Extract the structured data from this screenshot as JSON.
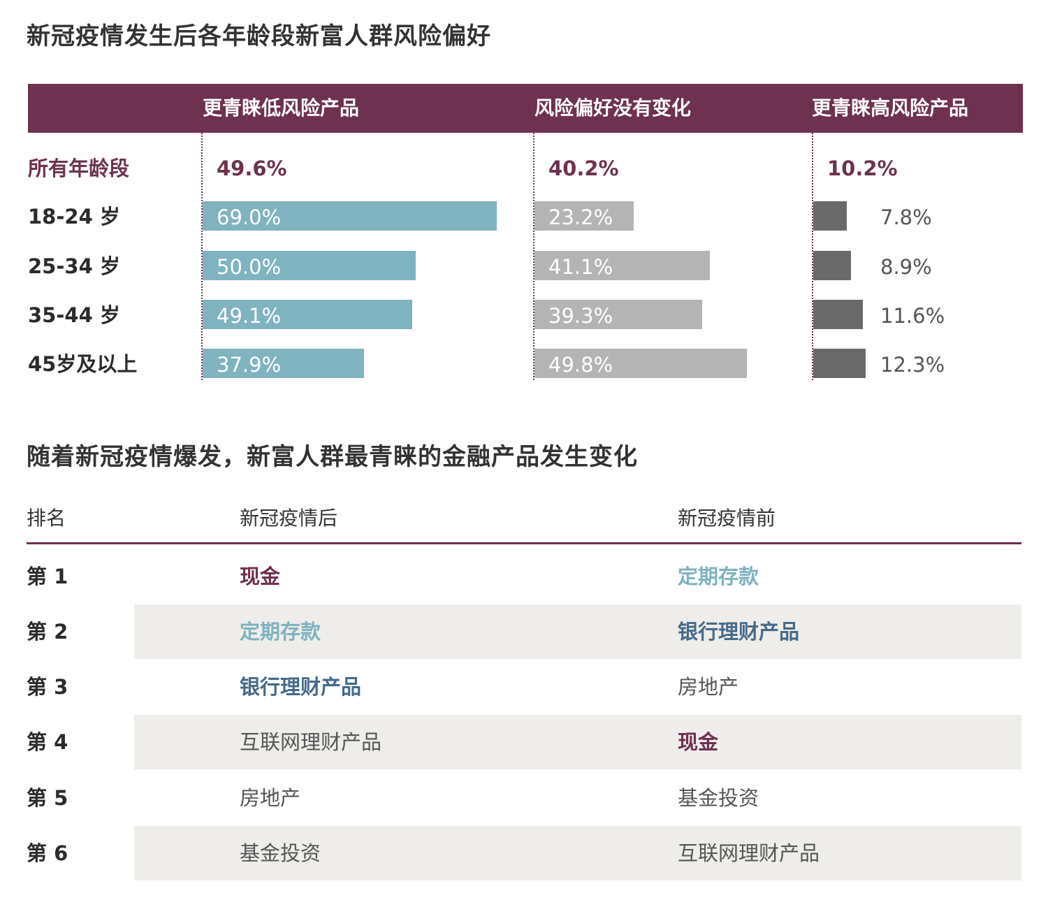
{
  "titles": {
    "chart": "新冠疫情发生后各年龄段新富人群风险偏好",
    "table": "随着新冠疫情爆发，新富人群最青睐的金融产品发生变化"
  },
  "colors": {
    "header_bg": "#6e3150",
    "low_risk": "#7fb3bf",
    "no_change": "#b4b4b4",
    "high_risk": "#6a6a6a",
    "accent": "#6e3150",
    "bank_blue": "#466a8a",
    "row_shade": "#efedea"
  },
  "chart_data": {
    "type": "bar",
    "title": "新冠疫情发生后各年龄段新富人群风险偏好",
    "orientation": "horizontal",
    "unit": "%",
    "categories": [
      "所有年龄段",
      "18-24 岁",
      "25-34 岁",
      "35-44 岁",
      "45岁及以上"
    ],
    "series": [
      {
        "name": "更青睐低风险产品",
        "values": [
          49.6,
          69.0,
          50.0,
          49.1,
          37.9
        ],
        "labels": [
          "49.6%",
          "69.0%",
          "50.0%",
          "49.1%",
          "37.9%"
        ]
      },
      {
        "name": "风险偏好没有变化",
        "values": [
          40.2,
          23.2,
          41.1,
          39.3,
          49.8
        ],
        "labels": [
          "40.2%",
          "23.2%",
          "41.1%",
          "39.3%",
          "49.8%"
        ]
      },
      {
        "name": "更青睐高风险产品",
        "values": [
          10.2,
          7.8,
          8.9,
          11.6,
          12.3
        ],
        "labels": [
          "10.2%",
          "7.8%",
          "8.9%",
          "11.6%",
          "12.3%"
        ]
      }
    ],
    "note_first_row": "所有年龄段 shown as text totals only (no bar)"
  },
  "table": {
    "headers": [
      "排名",
      "新冠疫情后",
      "新冠疫情前"
    ],
    "rows": [
      {
        "rank": "第 1",
        "after": "现金",
        "after_style": "cash",
        "before": "定期存款",
        "before_style": "deposit"
      },
      {
        "rank": "第 2",
        "after": "定期存款",
        "after_style": "deposit",
        "before": "银行理财产品",
        "before_style": "bank"
      },
      {
        "rank": "第 3",
        "after": "银行理财产品",
        "after_style": "bank",
        "before": "房地产",
        "before_style": "plain"
      },
      {
        "rank": "第 4",
        "after": "互联网理财产品",
        "after_style": "plain",
        "before": "现金",
        "before_style": "cash"
      },
      {
        "rank": "第 5",
        "after": "房地产",
        "after_style": "plain",
        "before": "基金投资",
        "before_style": "plain"
      },
      {
        "rank": "第 6",
        "after": "基金投资",
        "after_style": "plain",
        "before": "互联网理财产品",
        "before_style": "plain"
      }
    ]
  }
}
